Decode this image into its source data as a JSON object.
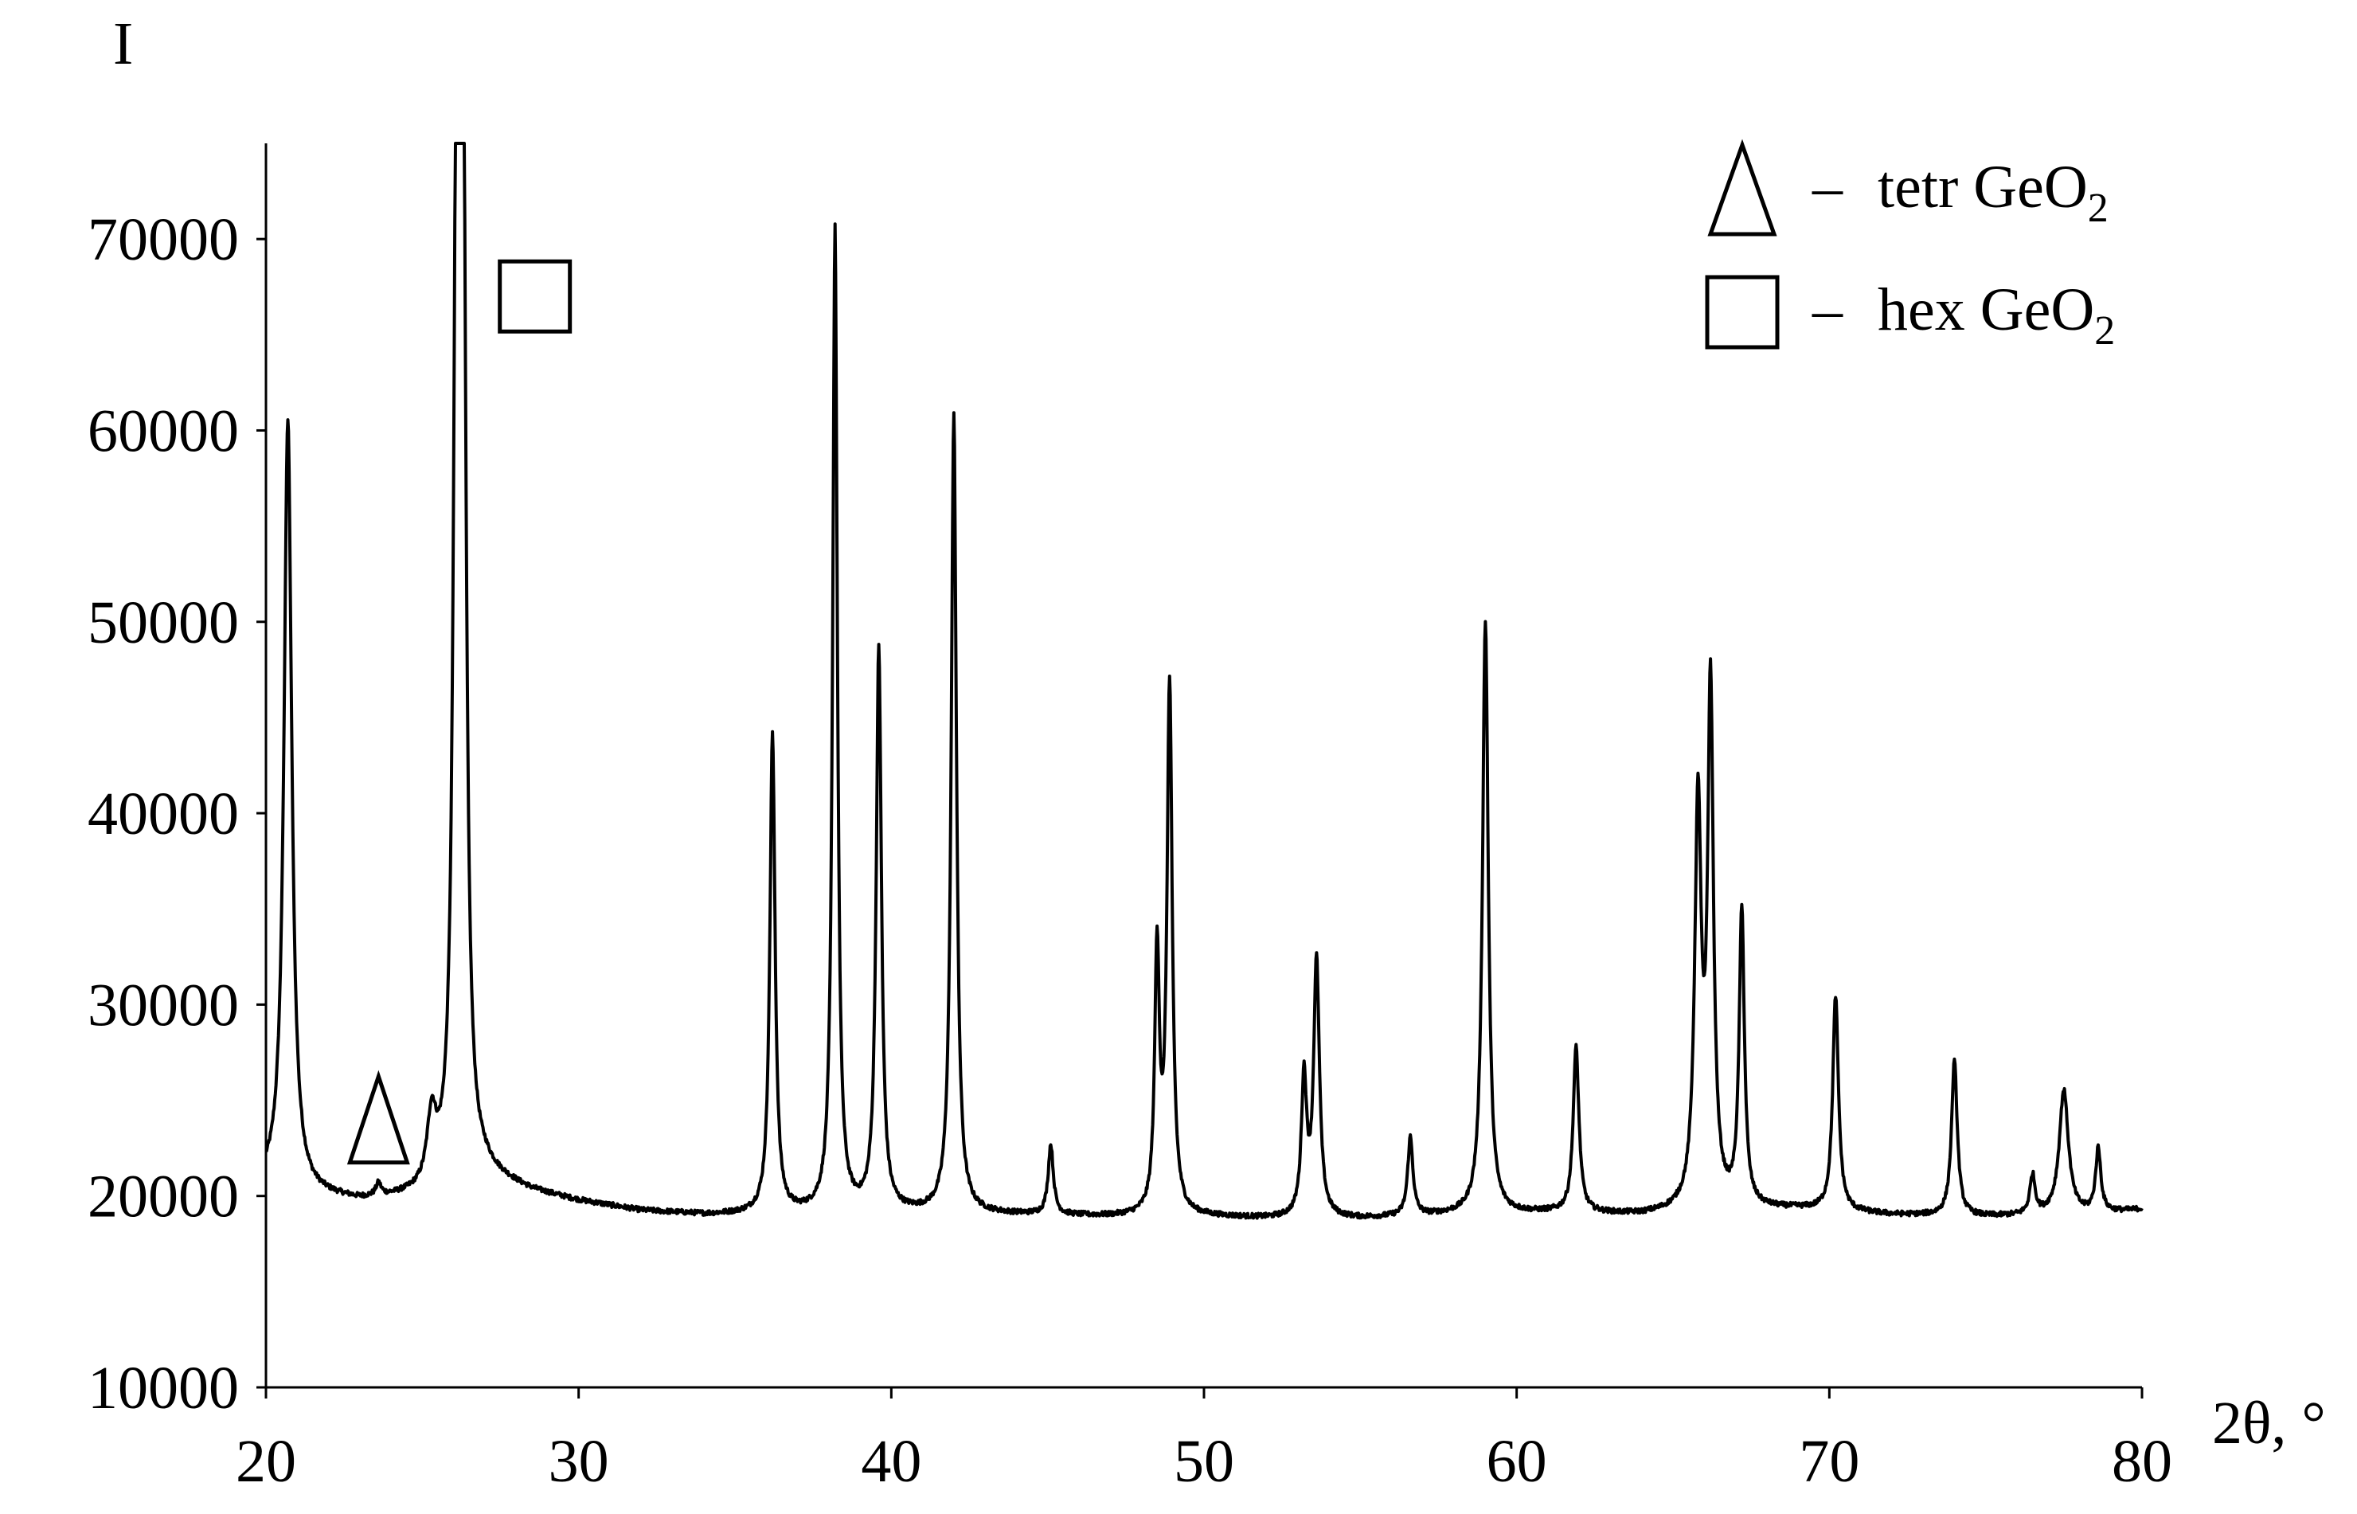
{
  "chart_data": {
    "type": "line",
    "title": "",
    "xlabel": "2θ, °",
    "ylabel": "I",
    "xlim": [
      20,
      80
    ],
    "ylim": [
      10000,
      75000
    ],
    "x_ticks": [
      20,
      30,
      40,
      50,
      60,
      70,
      80
    ],
    "y_ticks": [
      10000,
      20000,
      30000,
      40000,
      50000,
      60000,
      70000
    ],
    "grid": false,
    "legend_position": "top-right",
    "line_color": "#000000",
    "legend": [
      {
        "marker": "triangle",
        "dash": "–",
        "label": "tetr GeO",
        "subscript": "2"
      },
      {
        "marker": "square",
        "dash": "–",
        "label": "hex GeO",
        "subscript": "2"
      }
    ],
    "annotations": [
      {
        "marker": "triangle",
        "x": 23.6,
        "y": 24000
      },
      {
        "marker": "square",
        "x": 28.6,
        "y": 67000
      }
    ],
    "baseline": [
      [
        20.0,
        20500
      ],
      [
        21.5,
        20000
      ],
      [
        23.0,
        19700
      ],
      [
        25.0,
        19900
      ],
      [
        27.0,
        21000
      ],
      [
        28.5,
        20200
      ],
      [
        30.0,
        19700
      ],
      [
        32.0,
        19200
      ],
      [
        34.0,
        19000
      ],
      [
        36.0,
        19000
      ],
      [
        40.0,
        19100
      ],
      [
        44.0,
        19000
      ],
      [
        47.0,
        18900
      ],
      [
        50.0,
        18900
      ],
      [
        52.0,
        18800
      ],
      [
        55.0,
        18800
      ],
      [
        58.0,
        19000
      ],
      [
        61.0,
        19100
      ],
      [
        64.0,
        19000
      ],
      [
        66.5,
        19300
      ],
      [
        69.0,
        19300
      ],
      [
        72.0,
        19000
      ],
      [
        75.0,
        18900
      ],
      [
        78.0,
        19000
      ],
      [
        79.5,
        19200
      ],
      [
        80.0,
        19300
      ]
    ],
    "peaks": [
      {
        "x": 20.7,
        "y": 60500,
        "width": 0.3
      },
      {
        "x": 23.6,
        "y": 20400,
        "width": 0.2
      },
      {
        "x": 25.3,
        "y": 23500,
        "width": 0.35
      },
      {
        "x": 26.1,
        "y": 75000,
        "width": 0.22
      },
      {
        "x": 26.3,
        "y": 75000,
        "width": 0.22
      },
      {
        "x": 36.2,
        "y": 44000,
        "width": 0.2
      },
      {
        "x": 38.2,
        "y": 70500,
        "width": 0.18
      },
      {
        "x": 39.6,
        "y": 48500,
        "width": 0.2
      },
      {
        "x": 42.0,
        "y": 60800,
        "width": 0.2
      },
      {
        "x": 45.1,
        "y": 22600,
        "width": 0.2
      },
      {
        "x": 48.5,
        "y": 32500,
        "width": 0.18
      },
      {
        "x": 48.9,
        "y": 46500,
        "width": 0.2
      },
      {
        "x": 53.2,
        "y": 26000,
        "width": 0.2
      },
      {
        "x": 53.6,
        "y": 32200,
        "width": 0.22
      },
      {
        "x": 56.6,
        "y": 23000,
        "width": 0.2
      },
      {
        "x": 59.0,
        "y": 50000,
        "width": 0.22
      },
      {
        "x": 61.9,
        "y": 27700,
        "width": 0.22
      },
      {
        "x": 65.8,
        "y": 40000,
        "width": 0.25
      },
      {
        "x": 66.2,
        "y": 46000,
        "width": 0.22
      },
      {
        "x": 67.2,
        "y": 34700,
        "width": 0.2
      },
      {
        "x": 70.2,
        "y": 30400,
        "width": 0.22
      },
      {
        "x": 74.0,
        "y": 27000,
        "width": 0.22
      },
      {
        "x": 76.5,
        "y": 21000,
        "width": 0.2
      },
      {
        "x": 77.5,
        "y": 25500,
        "width": 0.35
      },
      {
        "x": 78.6,
        "y": 22400,
        "width": 0.2
      }
    ]
  }
}
